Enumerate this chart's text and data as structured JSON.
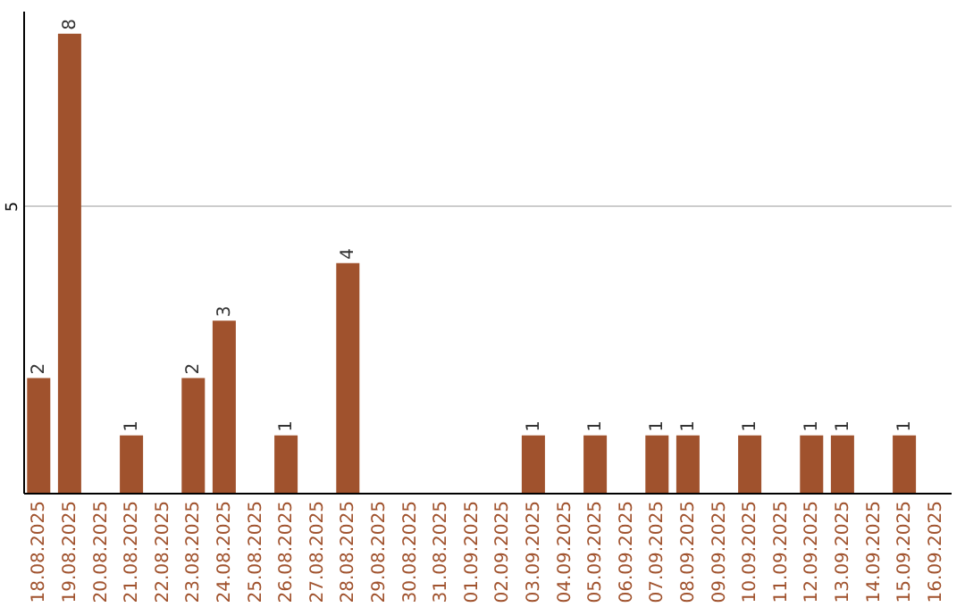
{
  "chart_data": {
    "type": "bar",
    "categories": [
      "18.08.2025",
      "19.08.2025",
      "20.08.2025",
      "21.08.2025",
      "22.08.2025",
      "23.08.2025",
      "24.08.2025",
      "25.08.2025",
      "26.08.2025",
      "27.08.2025",
      "28.08.2025",
      "29.08.2025",
      "30.08.2025",
      "31.08.2025",
      "01.09.2025",
      "02.09.2025",
      "03.09.2025",
      "04.09.2025",
      "05.09.2025",
      "06.09.2025",
      "07.09.2025",
      "08.09.2025",
      "09.09.2025",
      "10.09.2025",
      "11.09.2025",
      "12.09.2025",
      "13.09.2025",
      "14.09.2025",
      "15.09.2025",
      "16.09.2025"
    ],
    "values": [
      2,
      8,
      0,
      1,
      0,
      2,
      3,
      0,
      1,
      0,
      4,
      0,
      0,
      0,
      0,
      0,
      1,
      0,
      1,
      0,
      1,
      1,
      0,
      1,
      0,
      1,
      1,
      0,
      1,
      0
    ],
    "value_labels": [
      "2",
      "8",
      null,
      "1",
      null,
      "2",
      "3",
      null,
      "1",
      null,
      "4",
      null,
      null,
      null,
      null,
      null,
      "1",
      null,
      "1",
      null,
      "1",
      "1",
      null,
      "1",
      null,
      "1",
      "1",
      null,
      "1",
      null
    ],
    "color": "#a0522d",
    "ylim": [
      0,
      8.4
    ],
    "yticks": [
      5
    ],
    "grid": "y"
  }
}
